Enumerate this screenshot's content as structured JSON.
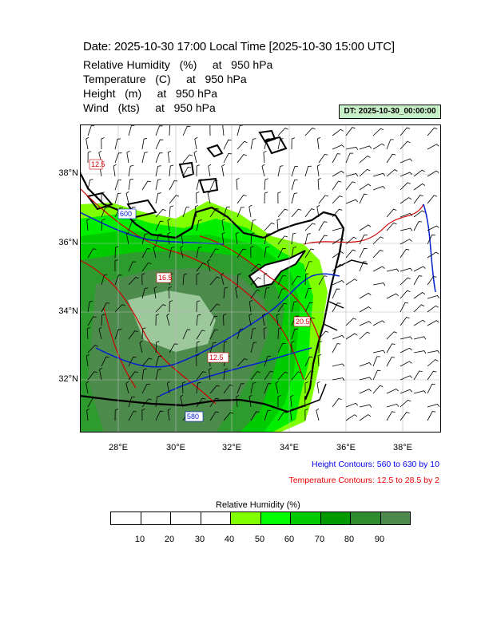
{
  "header": {
    "title": "Date: 2025-10-30  17:00 Local Time [2025-10-30  15:00 UTC]",
    "fields": [
      "Relative Humidity   (%)     at   950 hPa",
      "Temperature   (C)     at   950 hPa",
      "Height   (m)     at   950 hPa",
      "Wind   (kts)     at   950 hPa"
    ],
    "dt_badge": "DT: 2025-10-30_00:00:00"
  },
  "map": {
    "lat_labels": [
      "38°N",
      "36°N",
      "34°N",
      "32°N"
    ],
    "lon_labels": [
      "28°E",
      "30°E",
      "32°E",
      "34°E",
      "36°E",
      "38°E"
    ],
    "contour_labels": [
      "12.5",
      "16.5",
      "12.5",
      "20.5",
      "580",
      "600"
    ],
    "colors": {
      "ocean": "#ffffff",
      "land_outline": "#000000",
      "height_contour": "#0020d0",
      "temperature_contour": "#d00000"
    }
  },
  "contour_notes": {
    "height": "Height Contours: 560 to 630 by 10",
    "temperature": "Temperature Contours: 12.5 to 28.5 by 2"
  },
  "colorbar": {
    "title": "Relative Humidity  (%)",
    "ticks": [
      "10",
      "20",
      "30",
      "40",
      "50",
      "60",
      "70",
      "80",
      "90"
    ],
    "colors": [
      "#ffffff",
      "#ffffff",
      "#ffffff",
      "#ffffff",
      "#80ff00",
      "#00ff00",
      "#00cc00",
      "#009900",
      "#2e8b2e",
      "#4d8b4d"
    ]
  }
}
